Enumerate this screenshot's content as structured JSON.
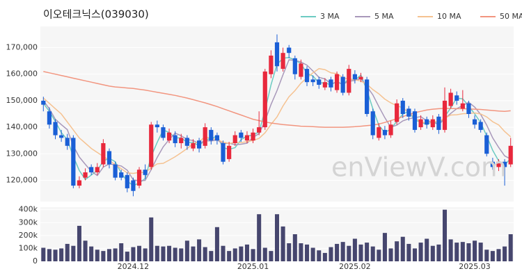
{
  "chart_data": {
    "type": "candlestick",
    "title": "이오테크닉스(039030)",
    "watermark": "enViewV.com",
    "categories": [
      null,
      null,
      null,
      null,
      null,
      null,
      null,
      null,
      null,
      null,
      null,
      null,
      null,
      null,
      null,
      "2024.12",
      null,
      null,
      null,
      null,
      null,
      null,
      null,
      null,
      null,
      null,
      null,
      null,
      null,
      null,
      null,
      null,
      null,
      null,
      null,
      "2025.01",
      null,
      null,
      null,
      null,
      null,
      null,
      null,
      null,
      null,
      null,
      null,
      null,
      null,
      null,
      null,
      null,
      "2025.02",
      null,
      null,
      null,
      null,
      null,
      null,
      null,
      null,
      null,
      null,
      null,
      null,
      null,
      null,
      null,
      null,
      null,
      null,
      null,
      "2025.03",
      null,
      null,
      null,
      null,
      null,
      null
    ],
    "up_color": "#e8283c",
    "down_color": "#1a5fd6",
    "open": [
      150000,
      146000,
      142000,
      137000,
      136000,
      136000,
      118000,
      121000,
      125000,
      123000,
      126000,
      131000,
      126000,
      123000,
      122000,
      120000,
      118000,
      124000,
      125000,
      141000,
      140000,
      135000,
      137000,
      134000,
      136000,
      132000,
      135000,
      133000,
      139000,
      137000,
      134000,
      128000,
      134000,
      138000,
      135000,
      135000,
      138000,
      140000,
      160000,
      172000,
      162000,
      170000,
      166000,
      159000,
      162000,
      158000,
      158000,
      155000,
      158000,
      154000,
      159000,
      153000,
      160000,
      158000,
      158000,
      146000,
      136000,
      139000,
      137000,
      142000,
      150000,
      147000,
      146000,
      140000,
      143000,
      140000,
      144000,
      139000,
      148000,
      152000,
      147000,
      149000,
      143000,
      142000,
      137000,
      127000,
      125000,
      127000,
      126000
    ],
    "high": [
      151500,
      147500,
      143000,
      139000,
      137500,
      137000,
      121500,
      124500,
      126000,
      126500,
      135500,
      132000,
      127000,
      124000,
      123000,
      121000,
      125000,
      126000,
      142000,
      142500,
      141000,
      139500,
      138500,
      137500,
      137000,
      135500,
      136000,
      141500,
      140000,
      138000,
      135000,
      134500,
      138500,
      139000,
      138500,
      139500,
      146000,
      162000,
      169000,
      175000,
      170000,
      171000,
      167000,
      165500,
      163000,
      159500,
      159000,
      158500,
      159000,
      161000,
      160000,
      163500,
      161500,
      160500,
      159000,
      147000,
      141500,
      140500,
      142500,
      150500,
      151000,
      148000,
      147000,
      144500,
      144000,
      144500,
      145000,
      155000,
      154500,
      153500,
      154000,
      150000,
      144500,
      143000,
      138000,
      128500,
      128000,
      128000,
      136000
    ],
    "low": [
      146000,
      139500,
      135500,
      134500,
      131500,
      117000,
      117000,
      120000,
      122000,
      122000,
      125000,
      124500,
      120000,
      120000,
      115500,
      114000,
      117000,
      120500,
      124000,
      138000,
      135000,
      134000,
      132500,
      132000,
      131500,
      131000,
      130500,
      132000,
      133500,
      133500,
      126000,
      127000,
      133000,
      134500,
      134000,
      134000,
      137000,
      139000,
      158500,
      161000,
      161000,
      166000,
      158000,
      158000,
      155500,
      155500,
      154500,
      154000,
      153500,
      153000,
      152000,
      152000,
      156500,
      157000,
      144000,
      135500,
      135000,
      135500,
      136000,
      141000,
      143500,
      142500,
      138000,
      139000,
      139500,
      139000,
      137500,
      138000,
      147000,
      148500,
      146000,
      143500,
      139500,
      138000,
      129000,
      124000,
      123500,
      118000,
      125000
    ],
    "close": [
      148500,
      141000,
      137000,
      136000,
      133000,
      118000,
      120000,
      123000,
      123000,
      125000,
      134000,
      126000,
      121000,
      121000,
      117000,
      116000,
      124000,
      122000,
      141000,
      140000,
      136000,
      138000,
      134000,
      136000,
      133000,
      134000,
      132000,
      140000,
      135000,
      135000,
      127000,
      133000,
      137000,
      136000,
      137000,
      138000,
      140000,
      161000,
      167000,
      163000,
      168000,
      168000,
      160000,
      164000,
      157000,
      157000,
      156000,
      157000,
      155000,
      160000,
      153000,
      162000,
      158000,
      159000,
      145000,
      137000,
      140000,
      137000,
      141000,
      149000,
      145000,
      144000,
      139000,
      143000,
      141000,
      143000,
      139000,
      150000,
      153000,
      150000,
      149000,
      145000,
      141000,
      139000,
      130000,
      125000,
      127000,
      125000,
      133000
    ],
    "volume": [
      105000,
      95000,
      90000,
      100000,
      135000,
      120000,
      275000,
      160000,
      115000,
      90000,
      80000,
      95000,
      100000,
      140000,
      75000,
      110000,
      120000,
      100000,
      340000,
      120000,
      115000,
      120000,
      105000,
      100000,
      160000,
      115000,
      170000,
      110000,
      80000,
      265000,
      120000,
      80000,
      100000,
      115000,
      130000,
      95000,
      365000,
      105000,
      80000,
      365000,
      270000,
      140000,
      210000,
      140000,
      130000,
      105000,
      85000,
      65000,
      110000,
      135000,
      150000,
      120000,
      175000,
      130000,
      145000,
      115000,
      90000,
      220000,
      100000,
      155000,
      190000,
      135000,
      100000,
      145000,
      175000,
      120000,
      130000,
      400000,
      170000,
      145000,
      150000,
      140000,
      160000,
      145000,
      90000,
      80000,
      95000,
      115000,
      210000
    ],
    "volume_color": "#46466e",
    "series": [
      {
        "name": "3 MA",
        "color": "#6ccbc2",
        "values": [
          149000,
          146000,
          142200,
          138000,
          135300,
          129000,
          123700,
          120300,
          122000,
          123700,
          127300,
          128300,
          127000,
          122700,
          119700,
          118000,
          119000,
          120700,
          129000,
          134300,
          139000,
          138000,
          136000,
          136000,
          134300,
          134300,
          133000,
          135300,
          135700,
          136700,
          132300,
          131700,
          132300,
          135300,
          136700,
          137000,
          138300,
          146300,
          156000,
          163700,
          166000,
          166300,
          165300,
          164000,
          160300,
          159300,
          156700,
          156700,
          156000,
          157300,
          156000,
          158300,
          157700,
          159700,
          154000,
          147000,
          140700,
          138000,
          139300,
          142300,
          145000,
          146000,
          142700,
          142000,
          141000,
          142300,
          141000,
          144000,
          147300,
          151000,
          150700,
          148000,
          145000,
          141700,
          136700,
          131300,
          127300,
          125700,
          128300
        ]
      },
      {
        "name": "5 MA",
        "color": "#a898ba",
        "values": [
          150000,
          147000,
          143000,
          141000,
          139100,
          133000,
          128800,
          126000,
          123400,
          121800,
          125000,
          126200,
          125800,
          125400,
          123800,
          120200,
          119800,
          120000,
          124000,
          128600,
          132600,
          135400,
          137800,
          136800,
          135400,
          135000,
          133800,
          135000,
          134800,
          135200,
          133800,
          134000,
          133400,
          133600,
          134000,
          136200,
          137600,
          142400,
          148600,
          153800,
          159800,
          165400,
          165200,
          164600,
          163400,
          161200,
          158800,
          158200,
          156400,
          157000,
          156200,
          157400,
          157600,
          158400,
          155400,
          152200,
          147800,
          143600,
          140000,
          140800,
          142400,
          143200,
          143600,
          144000,
          142400,
          142000,
          141000,
          143200,
          145200,
          147000,
          148200,
          149400,
          147600,
          144800,
          140800,
          136000,
          132400,
          129200,
          128000
        ]
      },
      {
        "name": "10 MA",
        "color": "#f5c291",
        "values": [
          151000,
          149000,
          147000,
          145000,
          142000,
          139000,
          136000,
          134000,
          132000,
          130500,
          129000,
          127500,
          125900,
          124400,
          122800,
          122600,
          123000,
          122900,
          124700,
          126200,
          126400,
          127600,
          128900,
          130400,
          132000,
          133800,
          134600,
          136400,
          135800,
          135300,
          134400,
          133900,
          134200,
          134200,
          134600,
          135000,
          135800,
          137900,
          141100,
          143900,
          148000,
          151500,
          153800,
          156600,
          158600,
          160500,
          162100,
          161700,
          160500,
          160200,
          158700,
          158100,
          157900,
          157400,
          156200,
          154200,
          152600,
          150600,
          149200,
          148100,
          147300,
          145500,
          143600,
          142000,
          141600,
          142200,
          142100,
          143400,
          144600,
          144700,
          145100,
          145200,
          145400,
          145000,
          143900,
          142100,
          140900,
          138400,
          136400
        ]
      },
      {
        "name": "50 MA",
        "color": "#f2957f",
        "values": [
          161000,
          160500,
          160000,
          159500,
          159000,
          158500,
          158000,
          157500,
          157000,
          156500,
          156000,
          155500,
          155200,
          155000,
          154800,
          154600,
          154300,
          154000,
          153600,
          153200,
          152800,
          152400,
          152000,
          151500,
          151000,
          150400,
          149800,
          149200,
          148500,
          147800,
          147000,
          146200,
          145400,
          144600,
          143800,
          143000,
          142500,
          142000,
          141600,
          141300,
          141000,
          140800,
          140600,
          140400,
          140300,
          140200,
          140100,
          140000,
          140000,
          140000,
          140000,
          140100,
          140200,
          140400,
          140600,
          140800,
          141200,
          141800,
          142500,
          143200,
          144000,
          144800,
          145500,
          146000,
          146500,
          146800,
          147000,
          147100,
          147100,
          147000,
          147000,
          146900,
          146800,
          146700,
          146500,
          146300,
          146100,
          146000,
          146200
        ]
      }
    ],
    "ylim": [
      112000,
      178000
    ],
    "yticks": [
      {
        "value": 120000,
        "label": "120,000"
      },
      {
        "value": 130000,
        "label": "130,000"
      },
      {
        "value": 140000,
        "label": "140,000"
      },
      {
        "value": 150000,
        "label": "150,000"
      },
      {
        "value": 160000,
        "label": "160,000"
      },
      {
        "value": 170000,
        "label": "170,000"
      }
    ],
    "volume_ylim": [
      0,
      420000
    ],
    "volume_yticks": [
      0,
      {
        "value": 100000,
        "label": "100k"
      },
      {
        "value": 200000,
        "label": "200k"
      },
      {
        "value": 300000,
        "label": "300k"
      },
      {
        "value": 400000,
        "label": "400k"
      }
    ],
    "grid": true,
    "legend": "top-right"
  }
}
